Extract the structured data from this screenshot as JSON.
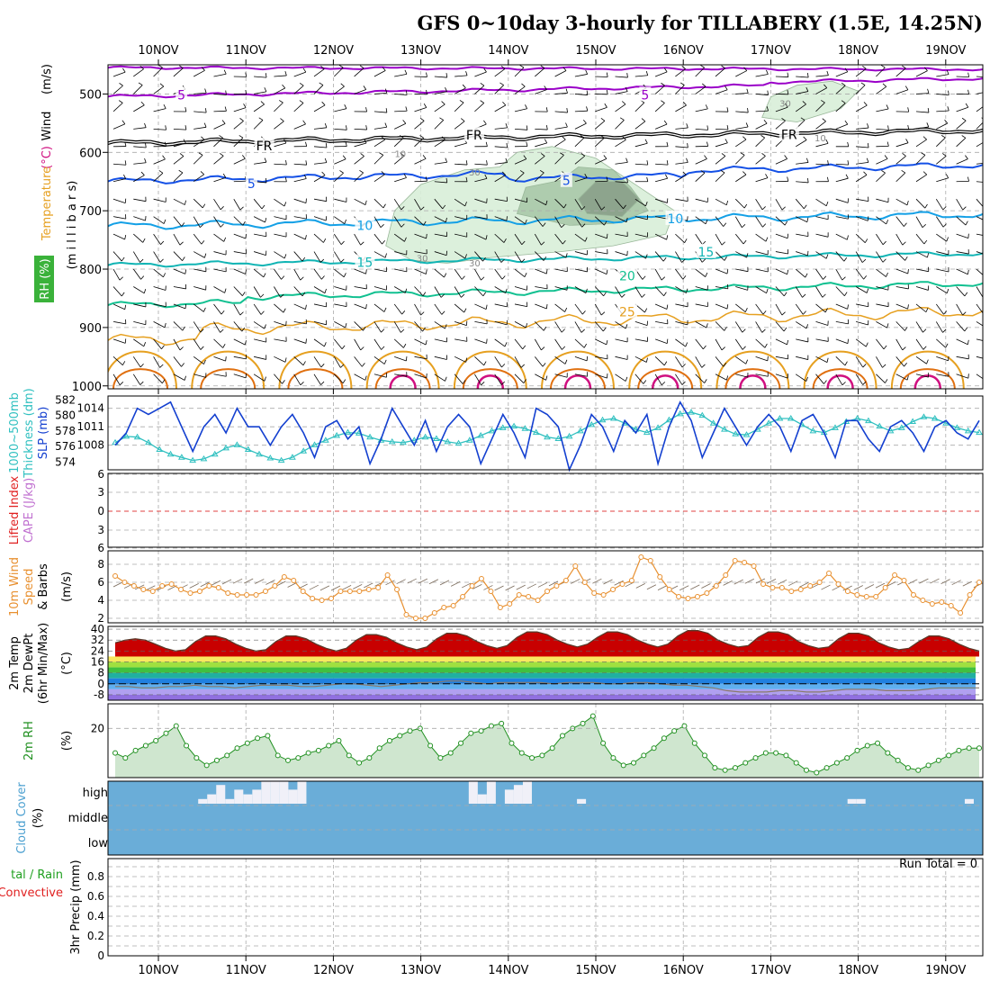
{
  "title": "GFS 0~10day 3-hourly for TILLABERY (1.5E, 14.25N)",
  "days": [
    "10NOV",
    "11NOV",
    "12NOV",
    "13NOV",
    "14NOV",
    "15NOV",
    "16NOV",
    "17NOV",
    "18NOV",
    "19NOV"
  ],
  "colors": {
    "grid": "#aaaaaa",
    "temp_minus5": "#9a00c8",
    "temp_fr": "#000000",
    "temp_5": "#1450e6",
    "temp_10": "#14a0e6",
    "temp_15": "#10b4b4",
    "temp_20": "#10c090",
    "temp_25": "#e6a020",
    "temp_30": "#e07010",
    "temp_35": "#d01080",
    "slp": "#1440d0",
    "thickness": "#30c0c0",
    "wind10m": "#e89030",
    "rh2m": "#209020",
    "cloud_bg": "#6aadd8",
    "cloud_high": "#f0f0f8",
    "rh_shade": "#cfe6cf"
  },
  "panels": {
    "upper": {
      "label_wind": "Wind",
      "label_wind_unit": "(m/s)",
      "label_temp": "Temperature",
      "label_temp_unit": "(°C)",
      "label_rh": "RH (%)",
      "label_p": "(m i l l i b a r s)",
      "yticks": [
        "500",
        "600",
        "700",
        "800",
        "900",
        "1000"
      ],
      "contour_labels": [
        {
          "text": "5",
          "day": 0.3,
          "p": 503,
          "color": "temp_minus5"
        },
        {
          "text": "5",
          "day": 5.6,
          "p": 503,
          "color": "temp_minus5"
        },
        {
          "text": "FR",
          "day": 1.2,
          "p": 590,
          "color": "temp_fr"
        },
        {
          "text": "FR",
          "day": 3.6,
          "p": 572,
          "color": "temp_fr"
        },
        {
          "text": "FR",
          "day": 7.2,
          "p": 571,
          "color": "temp_fr"
        },
        {
          "text": "5",
          "day": 1.1,
          "p": 655,
          "color": "temp_5"
        },
        {
          "text": "5",
          "day": 4.7,
          "p": 650,
          "color": "temp_5"
        },
        {
          "text": "10",
          "day": 2.35,
          "p": 727,
          "color": "temp_10"
        },
        {
          "text": "10",
          "day": 5.9,
          "p": 715,
          "color": "temp_10"
        },
        {
          "text": "15",
          "day": 2.35,
          "p": 790,
          "color": "temp_15"
        },
        {
          "text": "15",
          "day": 6.25,
          "p": 772,
          "color": "temp_15"
        },
        {
          "text": "20",
          "day": 5.35,
          "p": 813,
          "color": "temp_20"
        },
        {
          "text": "25",
          "day": 5.35,
          "p": 875,
          "color": "temp_25"
        }
      ],
      "rh_labels": [
        {
          "text": "30",
          "day": 3.55,
          "p": 640
        },
        {
          "text": "30",
          "day": 2.95,
          "p": 787
        },
        {
          "text": "30",
          "day": 3.55,
          "p": 795
        },
        {
          "text": "10",
          "day": 2.7,
          "p": 608
        },
        {
          "text": "10",
          "day": 7.5,
          "p": 581
        },
        {
          "text": "30",
          "day": 7.1,
          "p": 522
        }
      ]
    },
    "slp": {
      "label_thick": "1000~500mb",
      "label_thick2": "Thickness (dm)",
      "label_slp": "SLP (mb)",
      "yticks_thick": [
        "582",
        "580",
        "578",
        "576",
        "574"
      ],
      "yticks_slp": [
        "1014",
        "1011",
        "1008"
      ]
    },
    "cape": {
      "label_li": "Lifted Index",
      "label_cape": "CAPE (J/kg)",
      "yticks": [
        "6",
        "3",
        "0",
        "3",
        "6"
      ]
    },
    "wind10m": {
      "label": "10m Wind",
      "label2": "Speed",
      "label3": "& Barbs",
      "unit": "(m/s)",
      "yticks": [
        "8",
        "6",
        "4",
        "2"
      ]
    },
    "temp2m": {
      "label": "2m Temp",
      "label2": "2m DewPt",
      "label3": "(6hr Min/Max)",
      "unit": "(°C)",
      "yticks": [
        "40",
        "32",
        "24",
        "16",
        "8",
        "0",
        "-8"
      ]
    },
    "rh2m": {
      "label": "2m RH",
      "unit": "(%)",
      "yticks": [
        "20"
      ]
    },
    "cloud": {
      "label": "Cloud Cover",
      "unit": "(%)",
      "levels": [
        "high",
        "middle",
        "low"
      ]
    },
    "precip": {
      "label": "tal / Rain",
      "label2": "Convective",
      "label3": "3hr Precip (mm)",
      "yticks": [
        "0.8",
        "0.6",
        "0.4",
        "0.2",
        "0"
      ],
      "run_total": "Run Total = 0"
    }
  },
  "chart_data": [
    {
      "type": "line",
      "name": "Sea level pressure",
      "series": [
        {
          "name": "SLP",
          "values": [
            1008,
            1010,
            1014,
            1013,
            1014,
            1015,
            1011,
            1007,
            1011,
            1013,
            1010,
            1014,
            1011,
            1011,
            1008,
            1011,
            1013,
            1010,
            1006,
            1011,
            1012,
            1009,
            1011,
            1005,
            1009,
            1014,
            1011,
            1008,
            1012,
            1007,
            1011,
            1013,
            1011,
            1005,
            1009,
            1013,
            1010,
            1006,
            1014,
            1013,
            1011,
            1004,
            1008,
            1013,
            1011,
            1007,
            1012,
            1010,
            1013,
            1005,
            1011,
            1015,
            1012,
            1006,
            1010,
            1014,
            1011,
            1008,
            1011,
            1013,
            1011,
            1007,
            1012,
            1013,
            1010,
            1006,
            1012,
            1012,
            1009,
            1007,
            1011,
            1012,
            1010,
            1007,
            1011,
            1012,
            1010,
            1009,
            1012
          ]
        }
      ],
      "x_step_hours": 3,
      "x_start": "09NOV 12Z",
      "ylim": [
        1004,
        1016
      ]
    },
    {
      "type": "line",
      "name": "1000-500mb thickness",
      "series": [
        {
          "name": "Thickness",
          "values": [
            576.5,
            577.3,
            577.2,
            576.5,
            575.6,
            575.0,
            574.6,
            574.2,
            574.4,
            575.0,
            575.8,
            576.2,
            575.6,
            575.0,
            574.5,
            574.2,
            574.6,
            575.4,
            576.2,
            576.8,
            577.4,
            577.8,
            577.7,
            577.2,
            576.8,
            576.6,
            576.5,
            576.8,
            577.2,
            577.0,
            576.6,
            576.4,
            576.8,
            577.4,
            578.0,
            578.4,
            578.6,
            578.3,
            577.8,
            577.2,
            577.0,
            577.3,
            578.0,
            578.8,
            579.4,
            579.6,
            579.0,
            578.2,
            577.8,
            578.4,
            579.4,
            580.2,
            580.4,
            580.0,
            579.0,
            578.2,
            577.6,
            577.5,
            578.2,
            579.0,
            579.6,
            579.6,
            578.8,
            578.0,
            577.8,
            578.4,
            579.2,
            579.6,
            579.3,
            578.6,
            578.0,
            578.4,
            579.2,
            579.8,
            579.6,
            579.0,
            578.4,
            578.0,
            577.8
          ]
        }
      ],
      "ylim": [
        573,
        582.5
      ]
    },
    {
      "type": "line",
      "name": "10m wind speed",
      "series": [
        {
          "name": "Speed",
          "values": [
            6.7,
            6.0,
            5.6,
            5.2,
            5.0,
            5.6,
            5.8,
            5.2,
            4.8,
            5.0,
            5.6,
            5.4,
            4.8,
            4.6,
            4.6,
            4.6,
            5.0,
            5.6,
            6.6,
            6.2,
            5.0,
            4.2,
            4.0,
            4.2,
            5.0,
            5.0,
            5.0,
            5.2,
            5.4,
            6.8,
            5.2,
            2.4,
            2.0,
            2.0,
            2.6,
            3.2,
            3.4,
            4.4,
            5.6,
            6.4,
            5.0,
            3.2,
            3.6,
            4.6,
            4.4,
            4.0,
            5.0,
            5.6,
            6.2,
            7.8,
            6.0,
            4.8,
            4.6,
            5.2,
            5.8,
            6.2,
            8.8,
            8.4,
            6.6,
            5.2,
            4.4,
            4.2,
            4.4,
            4.8,
            5.6,
            6.8,
            8.4,
            8.2,
            7.8,
            5.8,
            5.4,
            5.4,
            5.0,
            5.2,
            5.6,
            6.0,
            7.0,
            5.8,
            5.0,
            4.6,
            4.4,
            4.4,
            5.4,
            6.8,
            6.2,
            4.6,
            4.0,
            3.6,
            3.8,
            3.4,
            2.6,
            4.6,
            6.0
          ]
        }
      ],
      "ylim": [
        1.5,
        9.5
      ]
    },
    {
      "type": "area",
      "name": "2m temperature",
      "series": [
        {
          "name": "2m Temp",
          "values": [
            30,
            32,
            33,
            32,
            29,
            26,
            24,
            25,
            31,
            35,
            35,
            33,
            29,
            26,
            24,
            25,
            31,
            35,
            35,
            33,
            29,
            26,
            24,
            26,
            32,
            36,
            36,
            34,
            30,
            27,
            25,
            27,
            33,
            37,
            37,
            35,
            31,
            28,
            26,
            28,
            34,
            38,
            38,
            36,
            32,
            29,
            27,
            29,
            34,
            38,
            38,
            36,
            32,
            29,
            27,
            29,
            35,
            39,
            39,
            37,
            32,
            29,
            27,
            28,
            34,
            38,
            38,
            36,
            31,
            28,
            26,
            27,
            33,
            37,
            37,
            35,
            30,
            27,
            25,
            26,
            31,
            35,
            35,
            33,
            29,
            26,
            24
          ]
        },
        {
          "name": "2m DewPt",
          "values": [
            -2,
            -2,
            -3,
            -3,
            -2,
            -2,
            -1,
            -2,
            -2,
            -3,
            -2,
            -1,
            -1,
            -1,
            -2,
            -2,
            -1,
            0,
            0,
            -1,
            -2,
            -1,
            0,
            1,
            1,
            2,
            2,
            1,
            0,
            1,
            1,
            1,
            1,
            0,
            1,
            1,
            1,
            0,
            0,
            1,
            1,
            0,
            -1,
            -1,
            -2,
            -3,
            -5,
            -6,
            -6,
            -6,
            -5,
            -5,
            -6,
            -6,
            -5,
            -4,
            -4,
            -4,
            -5,
            -5,
            -5,
            -4,
            -3,
            -3,
            -3,
            -3
          ]
        }
      ],
      "ylim": [
        -12,
        42
      ]
    },
    {
      "type": "area",
      "name": "2m relative humidity",
      "series": [
        {
          "name": "2m RH",
          "values": [
            10,
            8,
            11,
            13,
            15,
            18,
            21,
            13,
            8,
            5,
            7,
            9,
            12,
            14,
            16,
            17,
            9,
            7,
            8,
            10,
            11,
            13,
            15,
            9,
            6,
            8,
            12,
            15,
            17,
            19,
            20,
            13,
            8,
            10,
            14,
            18,
            19,
            21,
            22,
            14,
            10,
            8,
            9,
            12,
            17,
            20,
            22,
            25,
            14,
            8,
            5,
            6,
            9,
            12,
            16,
            19,
            21,
            14,
            9,
            4,
            3,
            4,
            6,
            8,
            10,
            10,
            9,
            6,
            3,
            2,
            4,
            6,
            8,
            11,
            13,
            14,
            10,
            7,
            4,
            3,
            5,
            7,
            9,
            11,
            12,
            12
          ]
        }
      ],
      "ylim": [
        0,
        30
      ]
    },
    {
      "type": "bar",
      "name": "High cloud cover",
      "series": [
        {
          "name": "high",
          "values": [
            0,
            0,
            0,
            0,
            0,
            0,
            0,
            0,
            0,
            0,
            20,
            40,
            80,
            20,
            60,
            40,
            60,
            100,
            100,
            100,
            60,
            100,
            0,
            0,
            0,
            0,
            0,
            0,
            0,
            0,
            0,
            0,
            0,
            0,
            0,
            0,
            0,
            0,
            0,
            0,
            100,
            40,
            100,
            0,
            60,
            80,
            100,
            0,
            0,
            0,
            0,
            0,
            20,
            0,
            0,
            0,
            0,
            0,
            0,
            0,
            0,
            0,
            0,
            0,
            0,
            0,
            0,
            0,
            0,
            0,
            0,
            0,
            0,
            0,
            0,
            0,
            0,
            0,
            0,
            0,
            0,
            0,
            20,
            20,
            0,
            0,
            0,
            0,
            0,
            0,
            0,
            0,
            0,
            0,
            0,
            20,
            0
          ]
        }
      ],
      "ylim": [
        0,
        100
      ]
    },
    {
      "type": "bar",
      "name": "3hr precipitation",
      "series": [
        {
          "name": "Total",
          "values": [
            0
          ]
        }
      ],
      "ylim": [
        0,
        1
      ]
    }
  ]
}
